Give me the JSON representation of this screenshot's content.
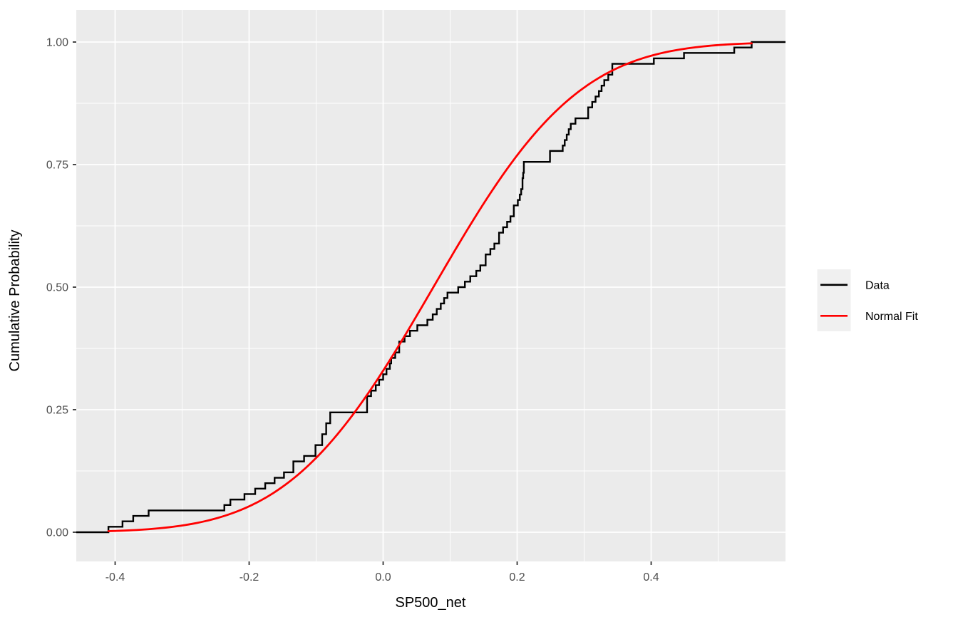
{
  "figure": {
    "background_color": "#ffffff",
    "panel_color": "#ebebeb",
    "gridline_color": "#ffffff",
    "tick_mark_color": "#333333",
    "tick_label_color": "#4d4d4d"
  },
  "legend": {
    "key_fill": "#f0f0f0",
    "entries": [
      {
        "label": "Data",
        "color": "#000000"
      },
      {
        "label": "Normal Fit",
        "color": "#ff0000"
      }
    ]
  },
  "chart_data": {
    "type": "line",
    "subtype": "ecdf_with_normal_fit",
    "title": "",
    "xlabel": "SP500_net",
    "ylabel": "Cumulative Probability",
    "xlim": [
      -0.458,
      0.6005
    ],
    "ylim": [
      -0.0596,
      1.0654
    ],
    "x_major_ticks": [
      {
        "value": -0.4,
        "label": "-0.4"
      },
      {
        "value": -0.2,
        "label": "-0.2"
      },
      {
        "value": 0.0,
        "label": "0.0"
      },
      {
        "value": 0.2,
        "label": "0.2"
      },
      {
        "value": 0.4,
        "label": "0.4"
      }
    ],
    "x_minor_ticks": [
      -0.3,
      -0.1,
      0.1,
      0.3,
      0.5
    ],
    "y_major_ticks": [
      {
        "value": 0.0,
        "label": "0.00"
      },
      {
        "value": 0.25,
        "label": "0.25"
      },
      {
        "value": 0.5,
        "label": "0.50"
      },
      {
        "value": 0.75,
        "label": "0.75"
      },
      {
        "value": 1.0,
        "label": "1.00"
      }
    ],
    "y_minor_ticks": [
      0.125,
      0.375,
      0.625,
      0.875
    ],
    "grid": "on",
    "legend_position": "right",
    "series": [
      {
        "name": "Data",
        "render": "ecdf_step",
        "color": "#000000",
        "line_width": 2.4,
        "n": 90,
        "values": [
          -0.41,
          -0.389,
          -0.373,
          -0.35,
          -0.237,
          -0.228,
          -0.207,
          -0.191,
          -0.176,
          -0.162,
          -0.148,
          -0.134,
          -0.134,
          -0.118,
          -0.101,
          -0.101,
          -0.091,
          -0.091,
          -0.085,
          -0.085,
          -0.079,
          -0.079,
          -0.024,
          -0.024,
          -0.024,
          -0.018,
          -0.011,
          -0.006,
          0.0,
          0.005,
          0.01,
          0.012,
          0.018,
          0.024,
          0.024,
          0.032,
          0.04,
          0.051,
          0.066,
          0.074,
          0.08,
          0.086,
          0.091,
          0.096,
          0.112,
          0.122,
          0.13,
          0.139,
          0.145,
          0.153,
          0.153,
          0.16,
          0.166,
          0.173,
          0.173,
          0.179,
          0.185,
          0.19,
          0.195,
          0.195,
          0.201,
          0.204,
          0.206,
          0.208,
          0.208,
          0.209,
          0.21,
          0.21,
          0.249,
          0.249,
          0.268,
          0.271,
          0.274,
          0.277,
          0.28,
          0.287,
          0.306,
          0.306,
          0.312,
          0.317,
          0.322,
          0.326,
          0.33,
          0.336,
          0.342,
          0.342,
          0.404,
          0.449,
          0.524,
          0.55
        ]
      },
      {
        "name": "Normal Fit",
        "render": "normal_cdf",
        "color": "#ff0000",
        "line_width": 2.8,
        "mean": 0.075,
        "sd": 0.17,
        "x_range": [
          -0.41,
          0.55
        ]
      }
    ]
  }
}
